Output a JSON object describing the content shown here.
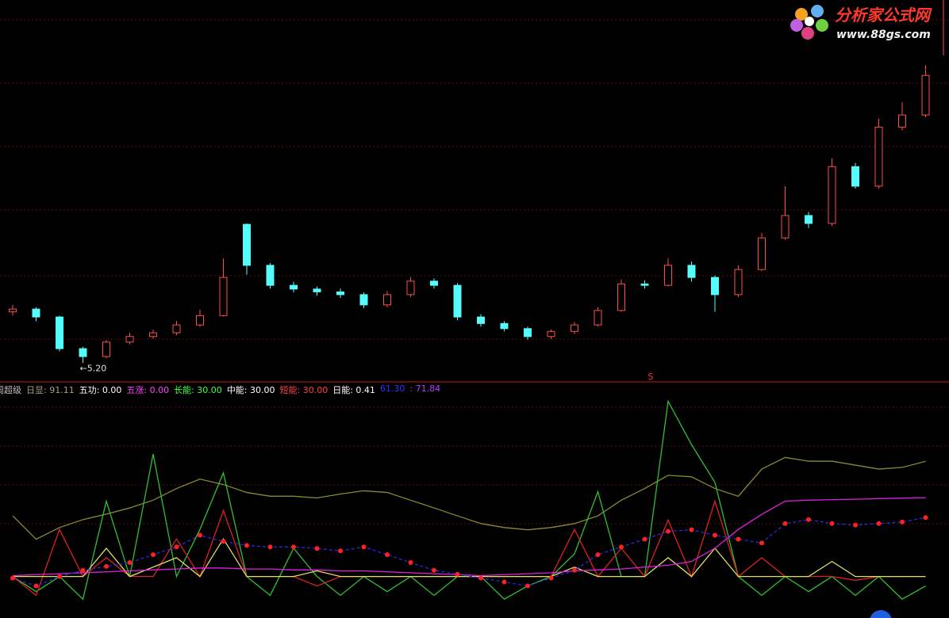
{
  "chart_data": [
    {
      "type": "candlestick",
      "open": [
        6.3,
        6.36,
        6.19,
        5.51,
        5.34,
        5.65,
        5.77,
        5.85,
        6.02,
        6.22,
        8.18,
        7.3,
        6.87,
        6.79,
        6.73,
        6.67,
        6.45,
        6.67,
        6.96,
        6.87,
        6.19,
        6.05,
        5.94,
        5.77,
        5.88,
        6.02,
        6.33,
        6.9,
        6.87,
        7.3,
        7.04,
        6.67,
        7.21,
        7.89,
        8.37,
        8.2,
        9.42,
        9.0,
        10.27,
        10.53
      ],
      "high": [
        6.45,
        6.4,
        6.22,
        5.55,
        5.7,
        5.85,
        5.92,
        6.1,
        6.35,
        7.45,
        8.2,
        7.35,
        6.95,
        6.85,
        6.8,
        6.72,
        6.75,
        7.05,
        7.02,
        6.92,
        6.25,
        6.1,
        5.98,
        5.92,
        6.08,
        6.4,
        7.0,
        6.98,
        7.45,
        7.38,
        7.08,
        7.3,
        8.0,
        9.0,
        8.45,
        9.6,
        9.5,
        10.45,
        10.8,
        11.6
      ],
      "low": [
        6.22,
        6.1,
        5.45,
        5.2,
        5.3,
        5.6,
        5.72,
        5.8,
        5.98,
        6.2,
        7.1,
        6.8,
        6.72,
        6.65,
        6.6,
        6.38,
        6.4,
        6.62,
        6.8,
        6.12,
        5.98,
        5.88,
        5.7,
        5.72,
        5.82,
        5.98,
        6.3,
        6.8,
        6.85,
        6.95,
        6.3,
        6.62,
        7.18,
        7.85,
        8.1,
        8.15,
        8.95,
        8.95,
        10.2,
        10.48
      ],
      "close": [
        6.36,
        6.19,
        5.51,
        5.34,
        5.65,
        5.77,
        5.85,
        6.02,
        6.22,
        7.04,
        7.3,
        6.87,
        6.79,
        6.73,
        6.67,
        6.45,
        6.67,
        6.96,
        6.87,
        6.19,
        6.05,
        5.94,
        5.77,
        5.88,
        6.02,
        6.33,
        6.9,
        6.87,
        7.3,
        7.04,
        6.67,
        7.21,
        7.89,
        8.37,
        8.2,
        9.42,
        9.0,
        10.27,
        10.53,
        11.38
      ],
      "ylim": [
        5.0,
        13.0
      ],
      "up_color": "#ff4d4d",
      "down_color": "#54fcfc",
      "annotation": "←5.20",
      "signal": "S"
    },
    {
      "type": "line",
      "header": [
        {
          "text": "周超级",
          "color": "#c0c0c0"
        },
        {
          "text": "日显: 91.11",
          "color": "#a0a080"
        },
        {
          "text": "五功: 0.00",
          "color": "#ffffff"
        },
        {
          "text": "五涨: 0.00",
          "color": "#ff40ff"
        },
        {
          "text": "长能: 30.00",
          "color": "#40ff40"
        },
        {
          "text": "中能: 30.00",
          "color": "#ffffff"
        },
        {
          "text": "短能: 30.00",
          "color": "#ff4040"
        },
        {
          "text": "日能: 0.41",
          "color": "#ffffff"
        },
        {
          "text": "61.30",
          "color": "#3030ff"
        },
        {
          "text": ": 71.84",
          "color": "#b040ff"
        }
      ],
      "ylim": [
        8,
        132
      ],
      "series": [
        {
          "color": "#8a8a30",
          "values": [
            62.2,
            49.8,
            56.0,
            60.2,
            63.1,
            66.4,
            70.5,
            76.7,
            81.7,
            78.8,
            74.6,
            72.6,
            72.6,
            71.7,
            73.8,
            75.5,
            74.6,
            70.5,
            66.4,
            62.2,
            58.1,
            56.0,
            54.8,
            56.0,
            58.1,
            62.2,
            70.5,
            76.7,
            83.7,
            82.9,
            76.7,
            72.6,
            87.0,
            93.2,
            91.2,
            91.2,
            89.1,
            87.0,
            87.9,
            91.1
          ]
        },
        {
          "color": "#30c030",
          "values": [
            30,
            22,
            30,
            18,
            70,
            30,
            95,
            30,
            55,
            85,
            30,
            20,
            45,
            30,
            20,
            30,
            22,
            30,
            20,
            30,
            30,
            18,
            25,
            30,
            42,
            75,
            30,
            30,
            123,
            100,
            80,
            30,
            20,
            30,
            22,
            30,
            20,
            30,
            18,
            25
          ]
        },
        {
          "color": "#e02020",
          "values": [
            30,
            20,
            55,
            30,
            40,
            30,
            30,
            50,
            30,
            65,
            30,
            30,
            30,
            25,
            30,
            30,
            30,
            30,
            30,
            30,
            30,
            30,
            30,
            30,
            55,
            30,
            45,
            30,
            60,
            30,
            70,
            30,
            40,
            30,
            30,
            30,
            28,
            30,
            30,
            30
          ]
        },
        {
          "color": "#e0e060",
          "values": [
            30,
            30,
            30,
            30,
            45,
            30,
            35,
            40,
            30,
            50,
            30,
            30,
            30,
            33,
            30,
            30,
            30,
            30,
            30,
            30,
            30,
            30,
            30,
            30,
            35,
            30,
            30,
            30,
            40,
            30,
            45,
            30,
            30,
            30,
            30,
            38,
            30,
            30,
            30,
            30
          ]
        },
        {
          "color": "#e020e0",
          "values": [
            30.5,
            31,
            31.5,
            32,
            32.5,
            33,
            33.5,
            34,
            34.5,
            34.5,
            34,
            34,
            33.5,
            33.5,
            33,
            33,
            32.5,
            32,
            31.5,
            31,
            30.5,
            31,
            31.5,
            32,
            33,
            33.5,
            34,
            35,
            36,
            38,
            45,
            55,
            63,
            70,
            70.5,
            70.8,
            71,
            71.3,
            71.6,
            71.84
          ]
        },
        {
          "color": "#2828e8",
          "dash": true,
          "marker_color": "#ff2020",
          "values": [
            29.2,
            25.0,
            30.0,
            33.3,
            35.4,
            37.4,
            41.6,
            45.7,
            51.9,
            48.6,
            46.5,
            45.7,
            45.7,
            44.9,
            43.6,
            45.7,
            41.6,
            37.4,
            33.3,
            31.2,
            29.2,
            27.1,
            25.0,
            29.2,
            33.3,
            41.6,
            45.7,
            49.8,
            54.0,
            54.8,
            51.9,
            49.8,
            47.8,
            58.1,
            60.2,
            58.1,
            57.3,
            58.1,
            58.9,
            61.3
          ]
        }
      ]
    }
  ],
  "watermark": {
    "title": "分析家公式网",
    "url": "www.88gs.com"
  }
}
